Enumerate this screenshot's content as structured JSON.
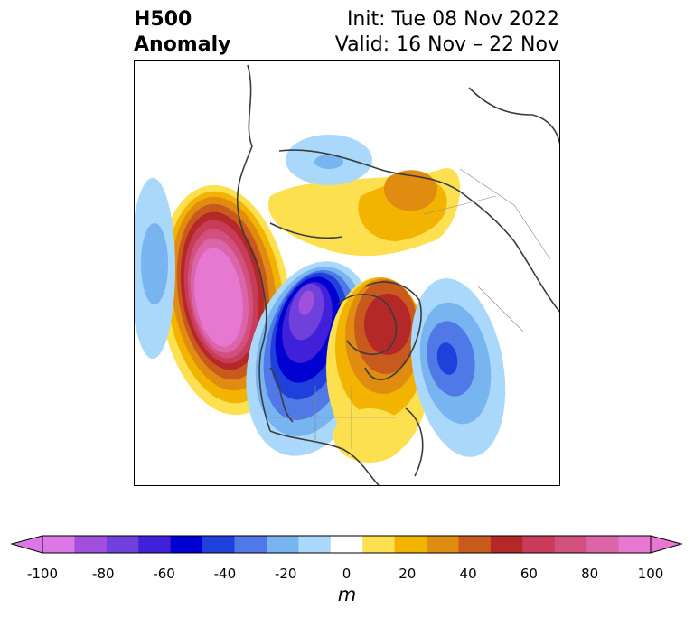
{
  "header": {
    "title_line1": "H500",
    "title_line2": "Anomaly",
    "init_label": "Init: Tue 08 Nov 2022",
    "valid_label": "Valid: 16 Nov – 22 Nov"
  },
  "map": {
    "projection": "north-polar-stereographic",
    "anomaly_features": [
      {
        "region": "Gulf of Alaska / NE Pacific",
        "sign": "positive",
        "peak_m": 100
      },
      {
        "region": "Western & central Canada / Hudson Bay",
        "sign": "negative",
        "peak_m": -80
      },
      {
        "region": "Greenland / Baffin Bay",
        "sign": "positive",
        "peak_m": 60
      },
      {
        "region": "North Atlantic",
        "sign": "negative",
        "peak_m": -60
      },
      {
        "region": "Northern Siberia / Scandinavia",
        "sign": "positive",
        "peak_m": 40
      },
      {
        "region": "Central Siberia",
        "sign": "negative",
        "peak_m": -20
      },
      {
        "region": "Western North Pacific",
        "sign": "negative",
        "peak_m": -20
      },
      {
        "region": "Eastern United States",
        "sign": "positive",
        "peak_m": 20
      }
    ]
  },
  "colorbar": {
    "unit": "m",
    "tick_labels": [
      "-100",
      "-80",
      "-60",
      "-40",
      "-20",
      "0",
      "20",
      "40",
      "60",
      "80",
      "100"
    ],
    "levels": [
      -100,
      -90,
      -80,
      -70,
      -60,
      -50,
      -40,
      -30,
      -20,
      -10,
      10,
      20,
      30,
      40,
      50,
      60,
      70,
      80,
      90,
      100
    ],
    "colors": [
      "#dc78e6",
      "#a050dc",
      "#7040dc",
      "#4020d8",
      "#0000d0",
      "#2040dc",
      "#5078e6",
      "#78b4f0",
      "#aad8fa",
      "#ffffff",
      "#fde050",
      "#f2b400",
      "#e08c10",
      "#c85a1e",
      "#b42828",
      "#c83c5a",
      "#d2507e",
      "#dc64a8",
      "#e678d2"
    ],
    "extend": "both"
  }
}
